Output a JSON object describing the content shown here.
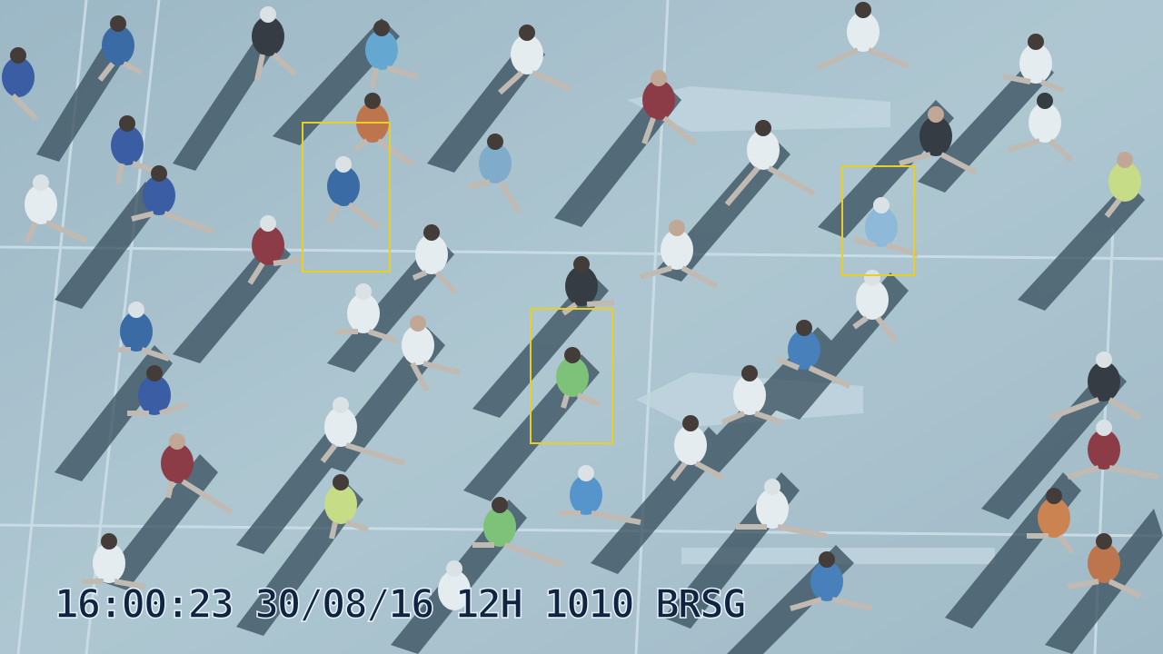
{
  "feed": {
    "overlay_text": "16:00:23 30/08/16 12H 1010 BRSG",
    "box_color": "#e8cf22",
    "detections": [
      {
        "label": "runner-detection-1"
      },
      {
        "label": "runner-detection-2"
      },
      {
        "label": "runner-detection-3"
      }
    ]
  },
  "colors": {
    "pavement": "#a9bfc9",
    "shadow": "#2b3f4c",
    "lane_line": "#d6e3ea"
  }
}
